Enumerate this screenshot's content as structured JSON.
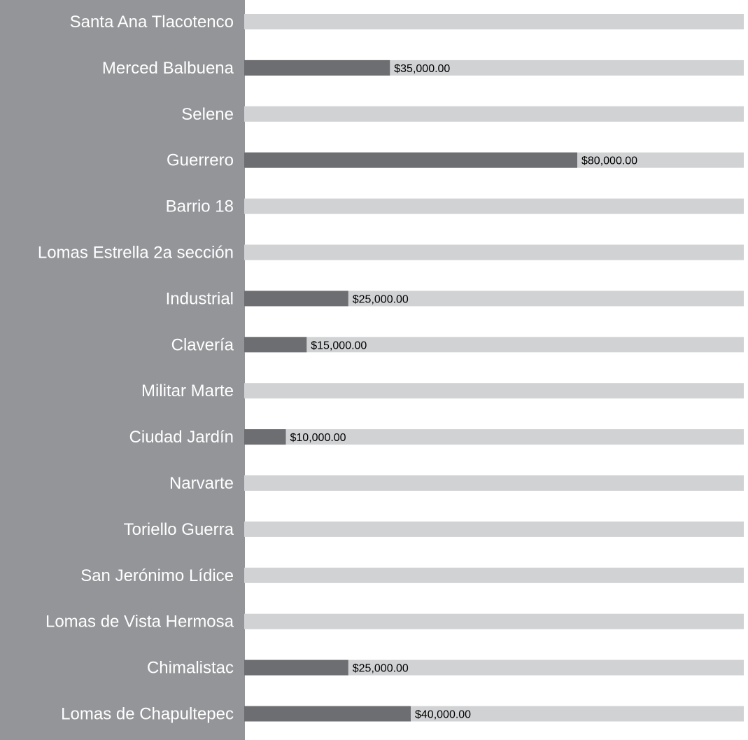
{
  "chart_data": {
    "type": "bar",
    "orientation": "horizontal",
    "categories": [
      "Santa Ana Tlacotenco",
      "Merced Balbuena",
      "Selene",
      "Guerrero",
      "Barrio 18",
      "Lomas Estrella 2a sección",
      "Industrial",
      "Clavería",
      "Militar Marte",
      "Ciudad Jardín",
      "Narvarte",
      "Toriello Guerra",
      "San Jerónimo Lídice",
      "Lomas de Vista Hermosa",
      "Chimalistac",
      "Lomas de Chapultepec"
    ],
    "values": [
      0,
      35000,
      0,
      80000,
      0,
      0,
      25000,
      15000,
      0,
      10000,
      0,
      0,
      0,
      0,
      25000,
      40000
    ],
    "value_labels": [
      "",
      "$35,000.00",
      "",
      "$80,000.00",
      "",
      "",
      "$25,000.00",
      "$15,000.00",
      "",
      "$10,000.00",
      "",
      "",
      "",
      "",
      "$25,000.00",
      "$40,000.00"
    ],
    "xlim": [
      0,
      120000
    ],
    "grid": false,
    "colors": {
      "label_panel": "#939598",
      "track": "#d1d2d4",
      "bar": "#6d6e71",
      "category_text": "#ffffff",
      "value_text": "#000000"
    }
  }
}
